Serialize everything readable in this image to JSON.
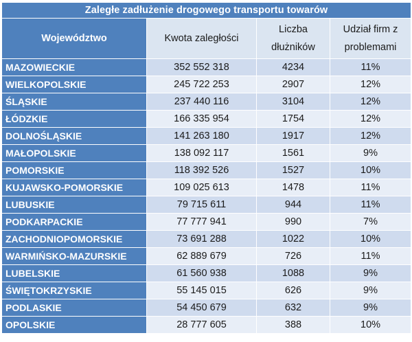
{
  "title": "Zaległe zadłużenie drogowego transportu towarów",
  "columns": {
    "region": "Województwo",
    "amount": "Kwota zaległości",
    "debtors_line1": "Liczba",
    "debtors_line2": "dłużników",
    "share_line1": "Udział firm z",
    "share_line2": "problemami"
  },
  "chart_data": {
    "type": "table",
    "title": "Zaległe zadłużenie drogowego transportu towarów",
    "headers": [
      "Województwo",
      "Kwota zaległości",
      "Liczba dłużników",
      "Udział firm z problemami"
    ],
    "rows": [
      {
        "region": "MAZOWIECKIE",
        "amount": "352 552 318",
        "debtors": "4234",
        "share": "11%"
      },
      {
        "region": "WIELKOPOLSKIE",
        "amount": "245 722 253",
        "debtors": "2907",
        "share": "12%"
      },
      {
        "region": "ŚLĄSKIE",
        "amount": "237 440 116",
        "debtors": "3104",
        "share": "12%"
      },
      {
        "region": "ŁÓDZKIE",
        "amount": "166 335 954",
        "debtors": "1754",
        "share": "12%"
      },
      {
        "region": "DOLNOŚLĄSKIE",
        "amount": "141 263 180",
        "debtors": "1917",
        "share": "12%"
      },
      {
        "region": "MAŁOPOLSKIE",
        "amount": "138 092 117",
        "debtors": "1561",
        "share": "9%"
      },
      {
        "region": "POMORSKIE",
        "amount": "118 392 526",
        "debtors": "1527",
        "share": "10%"
      },
      {
        "region": "KUJAWSKO-POMORSKIE",
        "amount": "109 025 613",
        "debtors": "1478",
        "share": "11%"
      },
      {
        "region": "LUBUSKIE",
        "amount": "79 715 611",
        "debtors": "944",
        "share": "11%"
      },
      {
        "region": "PODKARPACKIE",
        "amount": "77 777 941",
        "debtors": "990",
        "share": "7%"
      },
      {
        "region": "ZACHODNIOPOMORSKIE",
        "amount": "73 691 288",
        "debtors": "1022",
        "share": "10%"
      },
      {
        "region": "WARMIŃSKO-MAZURSKIE",
        "amount": "62 889 679",
        "debtors": "726",
        "share": "11%"
      },
      {
        "region": "LUBELSKIE",
        "amount": "61 560 938",
        "debtors": "1088",
        "share": "9%"
      },
      {
        "region": "ŚWIĘTOKRZYSKIE",
        "amount": "55 145 015",
        "debtors": "626",
        "share": "9%"
      },
      {
        "region": "PODLASKIE",
        "amount": "54 450 679",
        "debtors": "632",
        "share": "9%"
      },
      {
        "region": "OPOLSKIE",
        "amount": "28 777 605",
        "debtors": "388",
        "share": "10%"
      }
    ]
  },
  "colors": {
    "header_blue": "#4f81bd",
    "row_light": "#e8eef7",
    "row_mid": "#cfdbee",
    "header_light": "#dbe5f1"
  }
}
